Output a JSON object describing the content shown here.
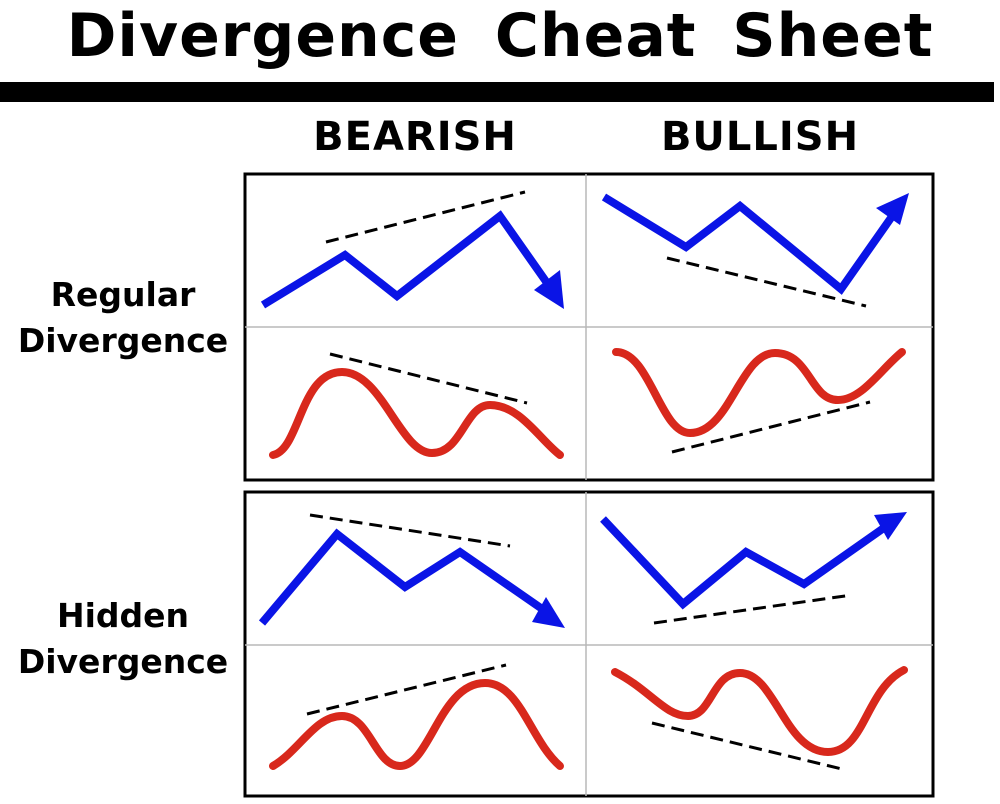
{
  "title": "Divergence Cheat Sheet",
  "columns": {
    "bearish": "BEARISH",
    "bullish": "BULLISH"
  },
  "rows": {
    "regular": {
      "line1": "Regular",
      "line2": "Divergence"
    },
    "hidden": {
      "line1": "Hidden",
      "line2": "Divergence"
    }
  },
  "colors": {
    "price_line": "#0a14e6",
    "oscillator_line": "#d8281c",
    "trendline": "#000000",
    "grid_border": "#000000",
    "inner_divider": "#b8b8b8"
  }
}
